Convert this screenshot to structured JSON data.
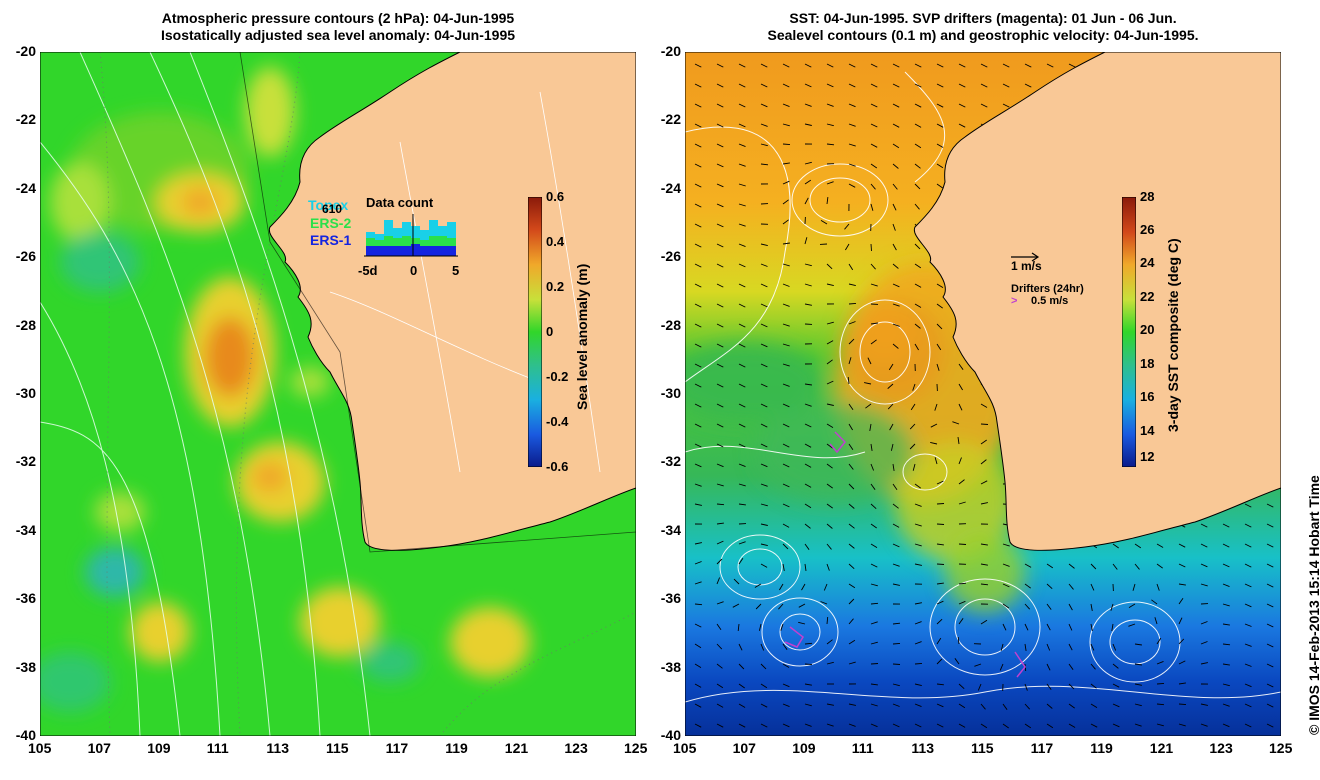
{
  "left_panel": {
    "title_line1": "Atmospheric pressure contours (2 hPa): 04-Jun-1995",
    "title_line2": "Isostatically adjusted sea level anomaly: 04-Jun-1995",
    "colorbar": {
      "title": "Sea level anomaly (m)",
      "ticks": [
        "0.6",
        "0.4",
        "0.2",
        "0",
        "-0.2",
        "-0.4",
        "-0.6"
      ]
    },
    "inset": {
      "title": "Data count",
      "count": "610",
      "legend": [
        "Topex",
        "ERS-2",
        "ERS-1"
      ],
      "x_ticks": [
        "-5d",
        "0",
        "5"
      ]
    }
  },
  "right_panel": {
    "title_line1": "SST: 04-Jun-1995. SVP drifters (magenta): 01 Jun - 06 Jun.",
    "title_line2": "Sealevel contours (0.1 m) and geostrophic velocity: 04-Jun-1995.",
    "colorbar": {
      "title": "3-day SST composite (deg C)",
      "ticks": [
        "28",
        "26",
        "24",
        "22",
        "20",
        "18",
        "16",
        "14",
        "12"
      ]
    },
    "velocity_scale": "1 m/s",
    "drifter_label": "Drifters (24hr)",
    "drifter_scale": "0.5 m/s"
  },
  "axes": {
    "y_ticks": [
      "-20",
      "-22",
      "-24",
      "-26",
      "-28",
      "-30",
      "-32",
      "-34",
      "-36",
      "-38",
      "-40"
    ],
    "x_ticks": [
      "105",
      "107",
      "109",
      "111",
      "113",
      "115",
      "117",
      "119",
      "121",
      "123",
      "125"
    ]
  },
  "credit": "© IMOS 14-Feb-2013 15:14 Hobart Time",
  "colors": {
    "land": "#f9c896",
    "sla_base": "#31d62a",
    "sla_high": "#e89a1c",
    "sst_warm": "#f5a21e",
    "sst_cold": "#0a3fb8"
  }
}
